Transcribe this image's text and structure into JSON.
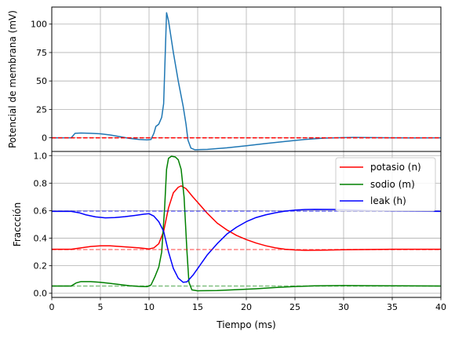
{
  "chart_data": [
    {
      "type": "line",
      "ylabel": "Potencial de membrana (mV)",
      "xlim": [
        0,
        40
      ],
      "ylim": [
        -12,
        115
      ],
      "xticks": [
        0,
        5,
        10,
        15,
        20,
        25,
        30,
        35,
        40
      ],
      "yticks": [
        0,
        25,
        50,
        75,
        100
      ],
      "grid": true,
      "series": [
        {
          "color": "#1f77b4",
          "style": "solid",
          "points": [
            [
              0,
              0
            ],
            [
              2,
              0
            ],
            [
              2.4,
              4
            ],
            [
              3,
              4.2
            ],
            [
              4,
              4
            ],
            [
              5,
              3.5
            ],
            [
              6,
              2.5
            ],
            [
              7,
              1
            ],
            [
              8,
              -0.5
            ],
            [
              9,
              -1.5
            ],
            [
              9.8,
              -1.8
            ],
            [
              10.2,
              -1.5
            ],
            [
              10.5,
              4
            ],
            [
              10.7,
              10
            ],
            [
              11,
              12
            ],
            [
              11.3,
              18
            ],
            [
              11.5,
              30
            ],
            [
              11.65,
              70
            ],
            [
              11.8,
              110
            ],
            [
              12,
              103
            ],
            [
              12.5,
              75
            ],
            [
              13,
              50
            ],
            [
              13.5,
              28
            ],
            [
              13.8,
              12
            ],
            [
              14,
              -2
            ],
            [
              14.3,
              -9
            ],
            [
              14.7,
              -10.5
            ],
            [
              16,
              -10.2
            ],
            [
              18,
              -8.8
            ],
            [
              20,
              -7
            ],
            [
              22,
              -5
            ],
            [
              24,
              -3.2
            ],
            [
              26,
              -1.5
            ],
            [
              28,
              -0.3
            ],
            [
              30,
              0.2
            ],
            [
              31,
              0.3
            ],
            [
              33,
              0.2
            ],
            [
              35,
              0
            ],
            [
              37,
              -0.1
            ],
            [
              40,
              0
            ]
          ]
        },
        {
          "color": "#ff0000",
          "style": "dashed",
          "points": [
            [
              0,
              0
            ],
            [
              40,
              0
            ]
          ]
        }
      ]
    },
    {
      "type": "line",
      "xlabel": "Tiempo (ms)",
      "ylabel": "Fraccción",
      "xlim": [
        0,
        40
      ],
      "ylim": [
        -0.03,
        1.03
      ],
      "xticks": [
        0,
        5,
        10,
        15,
        20,
        25,
        30,
        35,
        40
      ],
      "yticks": [
        0.0,
        0.2,
        0.4,
        0.6,
        0.8,
        1.0
      ],
      "grid": true,
      "legend_position": "top-right",
      "series": [
        {
          "name": "potasio (n)",
          "color": "#ff0000",
          "style": "solid",
          "points": [
            [
              0,
              0.32
            ],
            [
              2,
              0.32
            ],
            [
              3,
              0.33
            ],
            [
              4,
              0.34
            ],
            [
              5,
              0.345
            ],
            [
              6,
              0.345
            ],
            [
              7,
              0.34
            ],
            [
              8,
              0.335
            ],
            [
              9,
              0.33
            ],
            [
              10,
              0.322
            ],
            [
              10.5,
              0.33
            ],
            [
              11,
              0.36
            ],
            [
              11.5,
              0.45
            ],
            [
              12,
              0.62
            ],
            [
              12.5,
              0.73
            ],
            [
              13,
              0.77
            ],
            [
              13.3,
              0.78
            ],
            [
              13.8,
              0.76
            ],
            [
              14.5,
              0.7
            ],
            [
              15,
              0.66
            ],
            [
              16,
              0.58
            ],
            [
              17,
              0.51
            ],
            [
              18,
              0.46
            ],
            [
              19,
              0.42
            ],
            [
              20,
              0.39
            ],
            [
              21,
              0.365
            ],
            [
              22,
              0.345
            ],
            [
              23,
              0.33
            ],
            [
              24,
              0.32
            ],
            [
              25,
              0.315
            ],
            [
              26,
              0.312
            ],
            [
              28,
              0.313
            ],
            [
              30,
              0.316
            ],
            [
              32,
              0.318
            ],
            [
              35,
              0.32
            ],
            [
              40,
              0.32
            ]
          ]
        },
        {
          "name": "sodio (m)",
          "color": "#008000",
          "style": "solid",
          "points": [
            [
              0,
              0.053
            ],
            [
              2,
              0.053
            ],
            [
              2.5,
              0.075
            ],
            [
              3,
              0.085
            ],
            [
              4,
              0.085
            ],
            [
              5,
              0.08
            ],
            [
              6,
              0.072
            ],
            [
              7,
              0.063
            ],
            [
              8,
              0.055
            ],
            [
              9,
              0.05
            ],
            [
              9.8,
              0.048
            ],
            [
              10.2,
              0.06
            ],
            [
              10.6,
              0.12
            ],
            [
              11,
              0.19
            ],
            [
              11.3,
              0.3
            ],
            [
              11.6,
              0.62
            ],
            [
              11.8,
              0.9
            ],
            [
              12,
              0.98
            ],
            [
              12.3,
              0.995
            ],
            [
              12.7,
              0.99
            ],
            [
              13,
              0.97
            ],
            [
              13.3,
              0.9
            ],
            [
              13.6,
              0.7
            ],
            [
              13.9,
              0.3
            ],
            [
              14.1,
              0.08
            ],
            [
              14.4,
              0.025
            ],
            [
              15,
              0.018
            ],
            [
              17,
              0.02
            ],
            [
              19,
              0.026
            ],
            [
              21,
              0.033
            ],
            [
              23,
              0.042
            ],
            [
              25,
              0.049
            ],
            [
              27,
              0.054
            ],
            [
              30,
              0.056
            ],
            [
              33,
              0.055
            ],
            [
              36,
              0.054
            ],
            [
              40,
              0.053
            ]
          ]
        },
        {
          "name": "leak (h)",
          "color": "#0000ff",
          "style": "solid",
          "points": [
            [
              0,
              0.595
            ],
            [
              2,
              0.595
            ],
            [
              2.8,
              0.585
            ],
            [
              3.5,
              0.57
            ],
            [
              4.5,
              0.555
            ],
            [
              5.5,
              0.548
            ],
            [
              6.5,
              0.55
            ],
            [
              7.5,
              0.556
            ],
            [
              8.5,
              0.565
            ],
            [
              9.5,
              0.575
            ],
            [
              10,
              0.578
            ],
            [
              10.5,
              0.56
            ],
            [
              11,
              0.52
            ],
            [
              11.5,
              0.45
            ],
            [
              12,
              0.3
            ],
            [
              12.5,
              0.18
            ],
            [
              13,
              0.11
            ],
            [
              13.5,
              0.08
            ],
            [
              13.9,
              0.083
            ],
            [
              14.5,
              0.13
            ],
            [
              15,
              0.18
            ],
            [
              16,
              0.28
            ],
            [
              17,
              0.36
            ],
            [
              18,
              0.43
            ],
            [
              19,
              0.48
            ],
            [
              20,
              0.52
            ],
            [
              21,
              0.55
            ],
            [
              22,
              0.57
            ],
            [
              23,
              0.585
            ],
            [
              24,
              0.597
            ],
            [
              25,
              0.604
            ],
            [
              26,
              0.608
            ],
            [
              27,
              0.61
            ],
            [
              29,
              0.609
            ],
            [
              31,
              0.605
            ],
            [
              33,
              0.6
            ],
            [
              35,
              0.597
            ],
            [
              40,
              0.595
            ]
          ]
        },
        {
          "color": "#ff0000",
          "style": "dashed",
          "alpha": 0.5,
          "points": [
            [
              0,
              0.318
            ],
            [
              40,
              0.318
            ]
          ]
        },
        {
          "color": "#008000",
          "style": "dashed",
          "alpha": 0.5,
          "points": [
            [
              0,
              0.053
            ],
            [
              40,
              0.053
            ]
          ]
        },
        {
          "color": "#0000ff",
          "style": "dashed",
          "alpha": 0.5,
          "points": [
            [
              0,
              0.596
            ],
            [
              40,
              0.596
            ]
          ]
        }
      ]
    }
  ]
}
